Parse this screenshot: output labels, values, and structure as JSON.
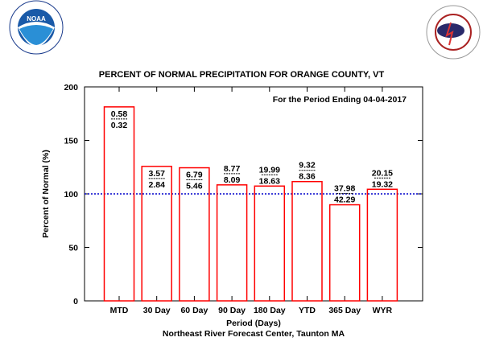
{
  "logos": {
    "left": "NOAA - National Oceanic and Atmospheric Administration - U.S. Department of Commerce",
    "right": "National Weather Service"
  },
  "chart_data": {
    "type": "bar",
    "title": "PERCENT OF NORMAL PRECIPITATION FOR ORANGE COUNTY, VT",
    "subtitle": "For the Period Ending 04-04-2017",
    "xlabel": "Period (Days)",
    "ylabel": "Percent of Normal (%)",
    "footer": "Northeast River Forecast Center, Taunton MA",
    "ylim": [
      0,
      200
    ],
    "yticks": [
      0,
      50,
      100,
      150,
      200
    ],
    "reference_line": 100,
    "categories": [
      "MTD",
      "30 Day",
      "60 Day",
      "90 Day",
      "180 Day",
      "YTD",
      "365 Day",
      "WYR"
    ],
    "values": [
      181.3,
      125.7,
      124.4,
      108.4,
      107.3,
      111.5,
      89.8,
      104.3
    ],
    "observed": [
      "0.58",
      "3.57",
      "6.79",
      "8.77",
      "19.99",
      "9.32",
      "37.98",
      "20.15"
    ],
    "normal": [
      "0.32",
      "2.84",
      "5.46",
      "8.09",
      "18.63",
      "8.36",
      "42.29",
      "19.32"
    ],
    "colors": {
      "bar": "#ff0000",
      "reference": "#0000cc"
    }
  }
}
